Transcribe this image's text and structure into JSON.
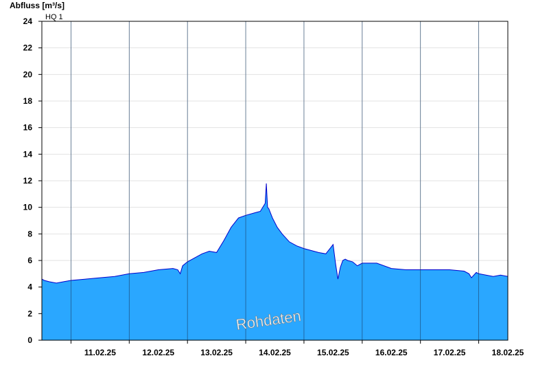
{
  "chart_data": {
    "type": "area",
    "ylabel": "Abfluss [m³/s]",
    "ylim": [
      0,
      24
    ],
    "yticks": [
      0,
      2,
      4,
      6,
      8,
      10,
      12,
      14,
      16,
      18,
      20,
      22,
      24
    ],
    "xlim": [
      "10.02.25 12:00",
      "18.02.25 12:00"
    ],
    "xticks": [
      "11.02.25",
      "12.02.25",
      "13.02.25",
      "14.02.25",
      "15.02.25",
      "16.02.25",
      "17.02.25",
      "18.02.25"
    ],
    "grid": true,
    "reference_line": {
      "label": "HQ 1",
      "value": 24
    },
    "watermark": "Rohdaten",
    "colors": {
      "fill": "#2aa7ff",
      "line": "#0000cc",
      "grid": "#e2e2e2",
      "axis": "#000000"
    },
    "series": [
      {
        "x": [
          "10.02.25 12:00",
          "10.02.25 13:00",
          "10.02.25 15:00",
          "10.02.25 18:00",
          "10.02.25 21:00",
          "11.02.25 00:00",
          "11.02.25 06:00",
          "11.02.25 12:00",
          "11.02.25 18:00",
          "12.02.25 00:00",
          "12.02.25 06:00",
          "12.02.25 12:00",
          "12.02.25 18:00",
          "12.02.25 20:00",
          "12.02.25 21:00",
          "12.02.25 22:00",
          "13.02.25 00:00",
          "13.02.25 06:00",
          "13.02.25 09:00",
          "13.02.25 12:00",
          "13.02.25 15:00",
          "13.02.25 18:00",
          "13.02.25 21:00",
          "14.02.25 00:00",
          "14.02.25 04:00",
          "14.02.25 06:00",
          "14.02.25 08:00",
          "14.02.25 08:30",
          "14.02.25 09:00",
          "14.02.25 09:30",
          "14.02.25 11:00",
          "14.02.25 13:00",
          "14.02.25 15:00",
          "14.02.25 18:00",
          "14.02.25 21:00",
          "15.02.25 00:00",
          "15.02.25 06:00",
          "15.02.25 09:00",
          "15.02.25 12:00",
          "15.02.25 13:00",
          "15.02.25 14:00",
          "15.02.25 15:00",
          "15.02.25 16:00",
          "15.02.25 17:00",
          "15.02.25 18:00",
          "15.02.25 20:00",
          "15.02.25 22:00",
          "16.02.25 00:00",
          "16.02.25 06:00",
          "16.02.25 12:00",
          "16.02.25 18:00",
          "16.02.25 21:00",
          "17.02.25 00:00",
          "17.02.25 06:00",
          "17.02.25 12:00",
          "17.02.25 18:00",
          "17.02.25 20:00",
          "17.02.25 21:00",
          "17.02.25 23:00",
          "18.02.25 00:00",
          "18.02.25 06:00",
          "18.02.25 09:00",
          "18.02.25 12:00"
        ],
        "y": [
          4.6,
          4.5,
          4.4,
          4.3,
          4.4,
          4.5,
          4.6,
          4.7,
          4.8,
          5.0,
          5.1,
          5.3,
          5.4,
          5.3,
          5.0,
          5.6,
          5.9,
          6.5,
          6.7,
          6.6,
          7.5,
          8.5,
          9.2,
          9.4,
          9.6,
          9.7,
          10.3,
          11.8,
          10.0,
          9.9,
          9.2,
          8.5,
          8.0,
          7.4,
          7.1,
          6.9,
          6.6,
          6.5,
          7.2,
          5.8,
          4.6,
          5.5,
          6.0,
          6.1,
          6.0,
          5.9,
          5.6,
          5.8,
          5.8,
          5.4,
          5.3,
          5.3,
          5.3,
          5.3,
          5.3,
          5.2,
          5.0,
          4.7,
          5.1,
          5.0,
          4.8,
          4.9,
          4.8
        ]
      }
    ]
  }
}
